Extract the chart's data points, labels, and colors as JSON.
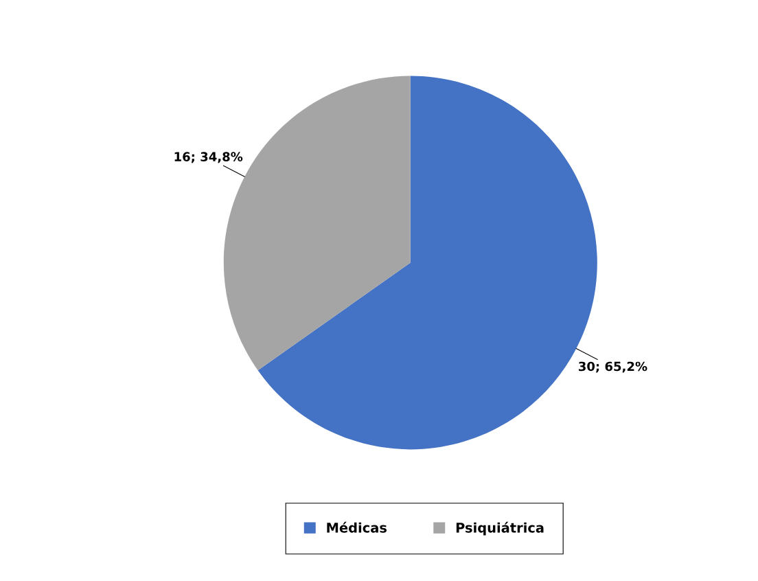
{
  "chart_data": {
    "type": "pie",
    "categories": [
      "Médicas",
      "Psiquiátrica"
    ],
    "values": [
      30,
      16
    ],
    "colors": [
      "#4472c4",
      "#a5a5a5"
    ],
    "value_labels": [
      "30; 65,2%",
      "16; 34,8%"
    ],
    "legend": "bottom"
  }
}
